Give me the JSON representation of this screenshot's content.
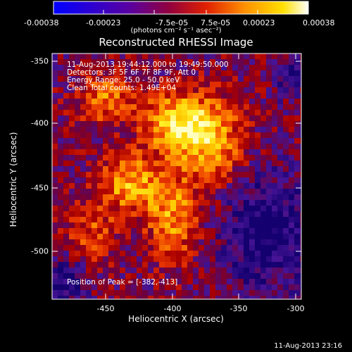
{
  "colorbar": {
    "ticks": [
      "-0.00038",
      "-0.00023",
      "-7.5e-05",
      "7.5e-05",
      "0.00023",
      "0.00038"
    ],
    "units": "(photons cm⁻² s⁻¹ asec⁻²)"
  },
  "title": "Reconstructed RHESSI Image",
  "info": {
    "time_range": "11-Aug-2013 19:44:12.000 to 19:49:50.000",
    "detectors": "Detectors: 3F 5F 6F 7F 8F 9F, Att 0",
    "energy": "Energy Range: 25.0 - 50.0 keV",
    "clean": "Clean    Total counts: 1.49E+04"
  },
  "peak": "Position of Peak = [-382,-413]",
  "axes": {
    "xlabel": "Heliocentric X (arcsec)",
    "ylabel": "Heliocentric Y (arcsec)",
    "xticks": [
      "-450",
      "-400",
      "-350",
      "-300"
    ],
    "yticks": [
      "-350",
      "-400",
      "-450",
      "-500"
    ]
  },
  "timestamp": "11-Aug-2013 23:16"
}
